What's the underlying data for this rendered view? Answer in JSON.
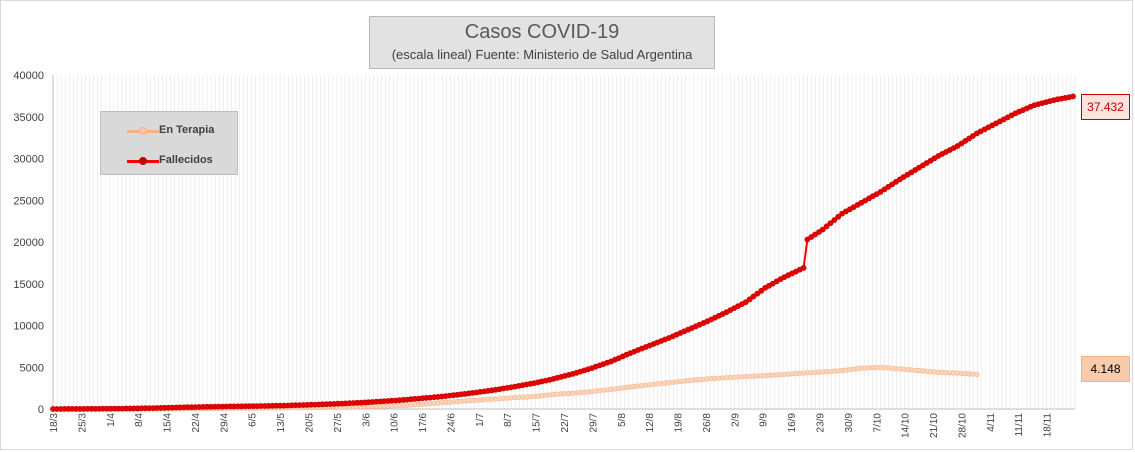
{
  "chart_data": {
    "type": "line",
    "title": "Casos COVID-19",
    "subtitle": "(escala lineal) Fuente: Ministerio de Salud Argentina",
    "x_tick_labels": [
      "18/3",
      "25/3",
      "1/4",
      "8/4",
      "15/4",
      "22/4",
      "29/4",
      "6/5",
      "13/5",
      "20/5",
      "27/5",
      "3/6",
      "10/6",
      "17/6",
      "24/6",
      "1/7",
      "8/7",
      "15/7",
      "22/7",
      "29/7",
      "5/8",
      "12/8",
      "19/8",
      "26/8",
      "2/9",
      "9/9",
      "16/9",
      "23/9",
      "30/9",
      "7/10",
      "14/10",
      "21/10",
      "28/10",
      "4/11",
      "11/11",
      "18/11"
    ],
    "ylim": [
      0,
      40000
    ],
    "y_ticks": [
      0,
      5000,
      10000,
      15000,
      20000,
      25000,
      30000,
      35000,
      40000
    ],
    "grid": "vertical",
    "legend_position": "upper-left",
    "series": [
      {
        "name": "En Terapia",
        "color": "#f4b183",
        "values": [
          0,
          0,
          0,
          0,
          0,
          10,
          20,
          40,
          60,
          80,
          100,
          120,
          140,
          170,
          190,
          220,
          260,
          320,
          420,
          550,
          720,
          900,
          1050,
          1200,
          1380,
          1500,
          1750,
          1900,
          2100,
          2350,
          2650,
          2900,
          3150,
          3400,
          3600,
          3750,
          3900,
          4000,
          4150,
          4300,
          4450,
          4600,
          4900,
          5000,
          4800,
          4600,
          4400,
          4300,
          4148
        ],
        "last_label": "4.148"
      },
      {
        "name": "Fallecidos",
        "color": "#ff0000",
        "values": [
          0,
          10,
          20,
          40,
          60,
          100,
          160,
          210,
          260,
          300,
          330,
          360,
          410,
          480,
          560,
          650,
          760,
          900,
          1050,
          1250,
          1450,
          1700,
          1980,
          2300,
          2680,
          3100,
          3600,
          4200,
          4900,
          5700,
          6700,
          7600,
          8500,
          9500,
          10500,
          11600,
          12800,
          14500,
          15800,
          16900,
          20300,
          21500,
          23400,
          24700,
          26000,
          27500,
          28900,
          30300,
          31500,
          33000,
          34200,
          35400,
          36400,
          37000,
          37432
        ],
        "last_label": "37.432"
      }
    ],
    "x_positions": {
      "En Terapia": [
        0,
        1,
        2,
        3,
        4,
        5,
        6,
        7,
        8,
        9,
        10,
        11,
        12,
        13,
        14,
        15,
        16,
        17,
        18,
        19,
        20,
        21,
        22,
        23,
        24,
        25,
        26,
        27,
        28,
        29,
        30,
        31,
        32,
        33,
        34,
        35,
        36,
        37,
        38,
        39,
        40,
        41,
        42,
        43,
        44,
        45,
        46,
        47,
        48
      ],
      "Fallecidos": [
        0,
        1,
        2,
        3,
        4,
        5,
        6,
        7,
        8,
        9,
        10,
        11,
        12,
        13,
        14,
        15,
        16,
        17,
        18,
        19,
        20,
        21,
        22,
        23,
        24,
        25,
        26,
        27,
        28,
        29,
        30,
        31,
        32,
        33,
        34,
        35,
        36,
        37,
        38,
        39,
        39.2,
        40,
        41,
        42,
        43,
        44,
        45,
        46,
        47,
        48,
        49,
        50,
        51,
        52,
        53
      ]
    }
  }
}
